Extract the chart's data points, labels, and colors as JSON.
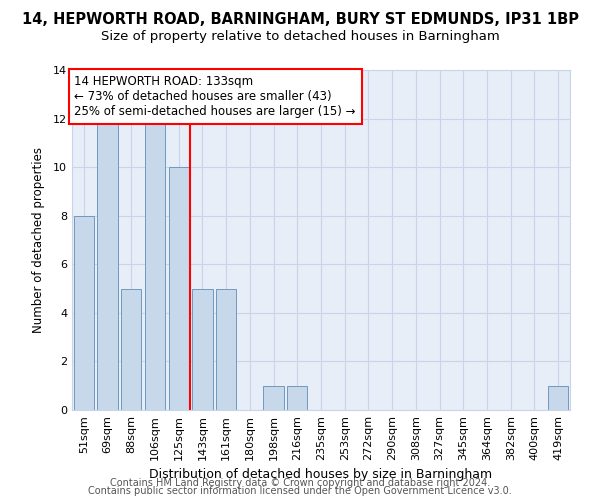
{
  "title1": "14, HEPWORTH ROAD, BARNINGHAM, BURY ST EDMUNDS, IP31 1BP",
  "title2": "Size of property relative to detached houses in Barningham",
  "xlabel": "Distribution of detached houses by size in Barningham",
  "ylabel": "Number of detached properties",
  "categories": [
    "51sqm",
    "69sqm",
    "88sqm",
    "106sqm",
    "125sqm",
    "143sqm",
    "161sqm",
    "180sqm",
    "198sqm",
    "216sqm",
    "235sqm",
    "253sqm",
    "272sqm",
    "290sqm",
    "308sqm",
    "327sqm",
    "345sqm",
    "364sqm",
    "382sqm",
    "400sqm",
    "419sqm"
  ],
  "values": [
    8,
    12,
    5,
    12,
    10,
    5,
    5,
    0,
    1,
    1,
    0,
    0,
    0,
    0,
    0,
    0,
    0,
    0,
    0,
    0,
    1
  ],
  "bar_color": "#c8d8eb",
  "bar_edgecolor": "#7098c0",
  "property_line_x": 4.48,
  "annotation_line1": "14 HEPWORTH ROAD: 133sqm",
  "annotation_line2": "← 73% of detached houses are smaller (43)",
  "annotation_line3": "25% of semi-detached houses are larger (15) →",
  "annotation_box_color": "white",
  "annotation_box_edgecolor": "red",
  "line_color": "red",
  "ylim": [
    0,
    14
  ],
  "yticks": [
    0,
    2,
    4,
    6,
    8,
    10,
    12,
    14
  ],
  "grid_color": "#c8d4e8",
  "background_color": "#e8eef8",
  "footer1": "Contains HM Land Registry data © Crown copyright and database right 2024.",
  "footer2": "Contains public sector information licensed under the Open Government Licence v3.0.",
  "title1_fontsize": 10.5,
  "title2_fontsize": 9.5,
  "xlabel_fontsize": 9,
  "ylabel_fontsize": 8.5,
  "tick_fontsize": 8,
  "annotation_fontsize": 8.5,
  "footer_fontsize": 7
}
